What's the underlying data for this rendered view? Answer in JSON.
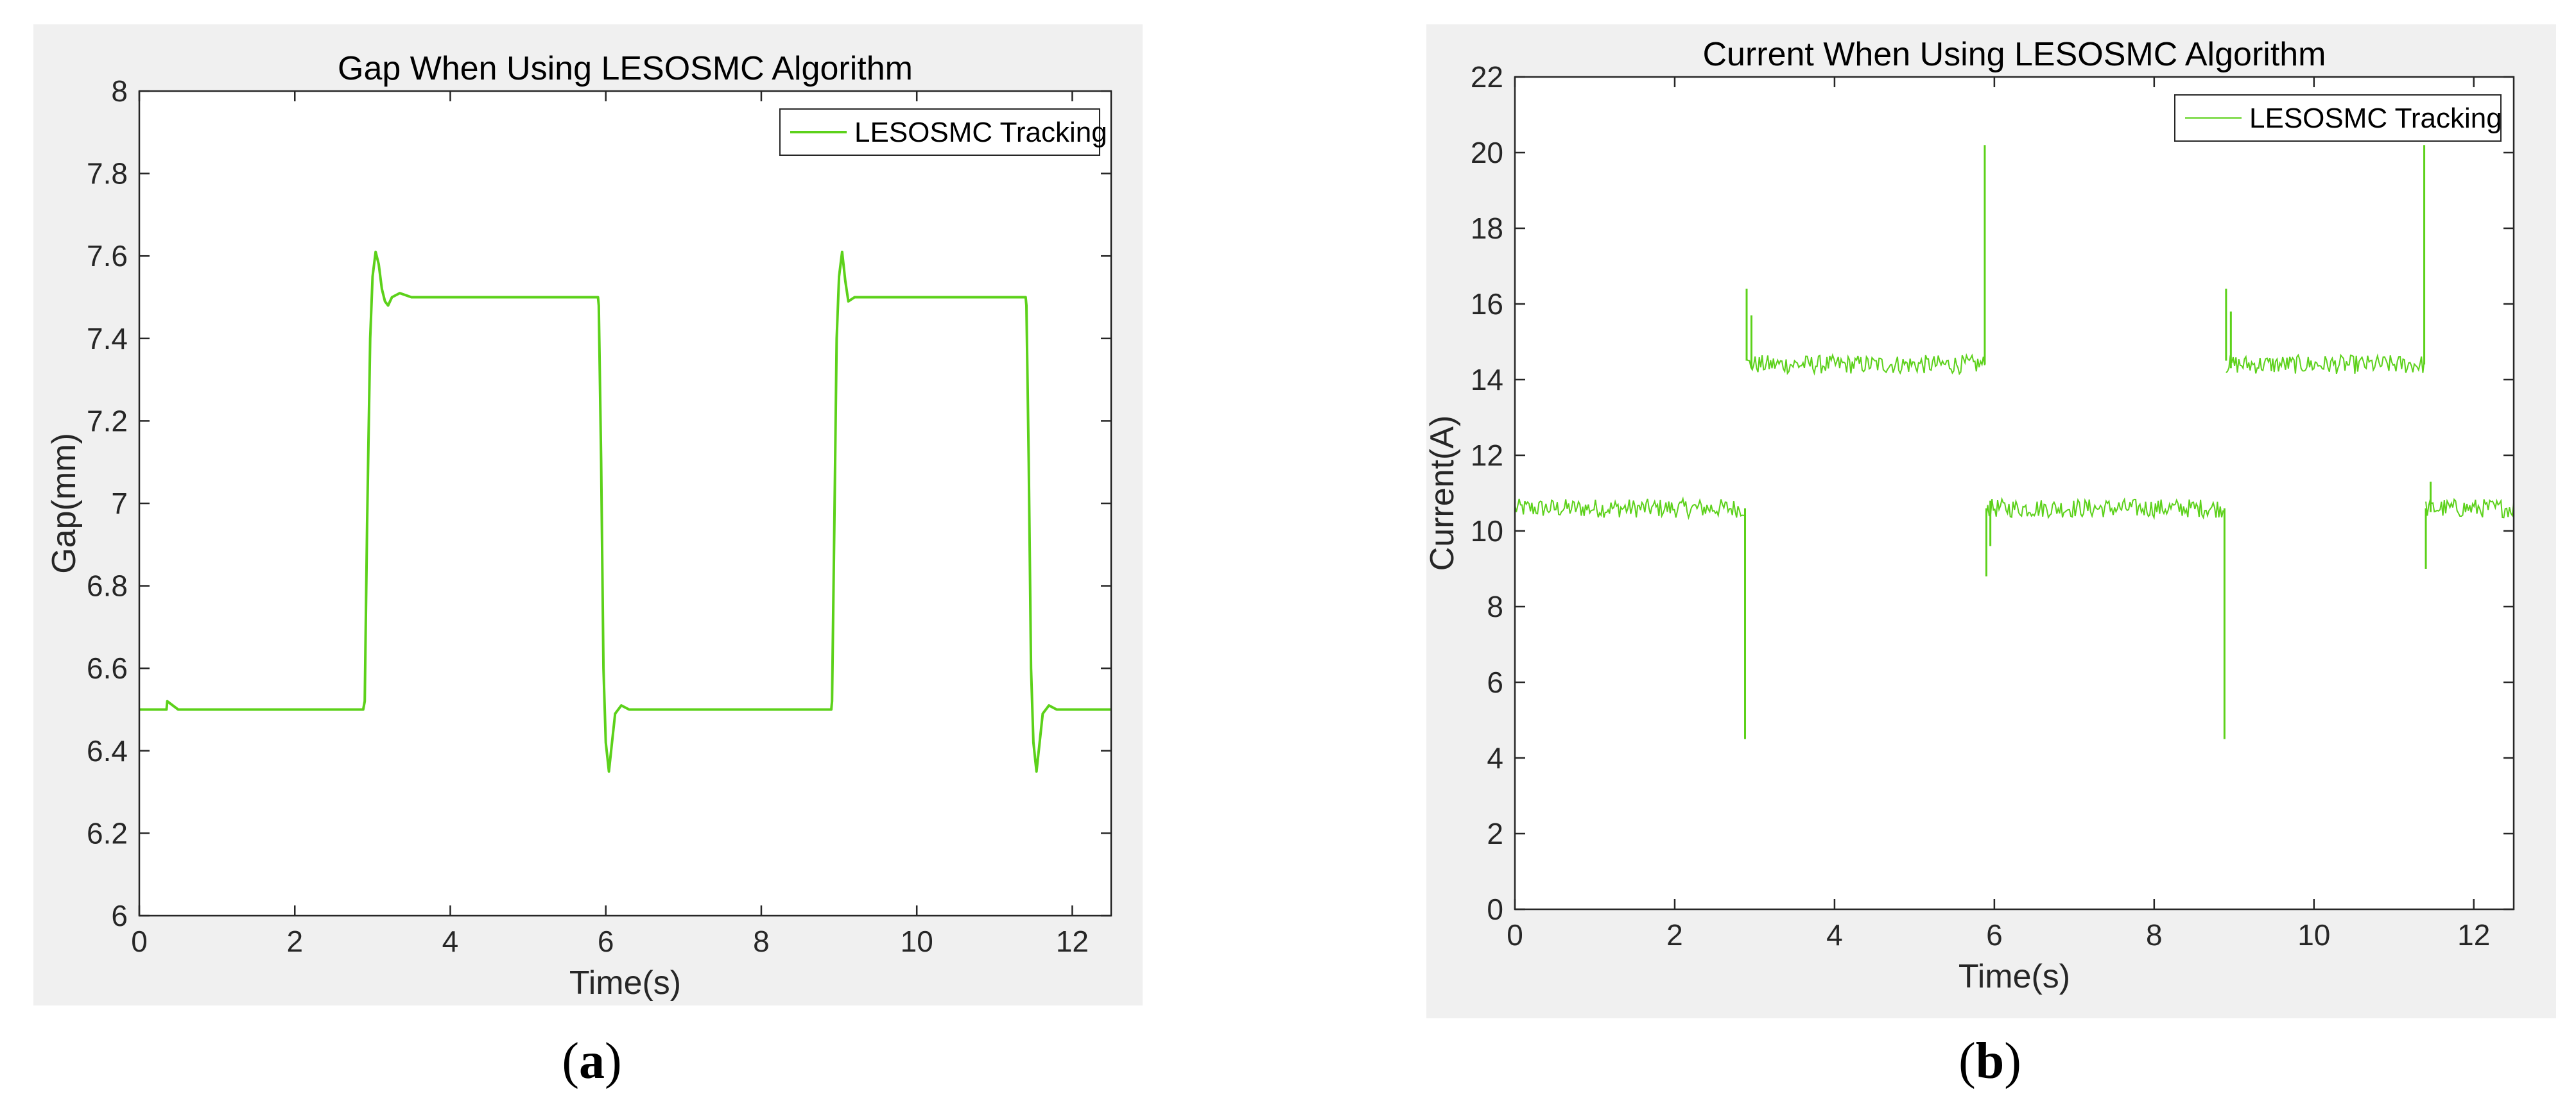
{
  "panels": [
    {
      "caption": "a",
      "chart_data": {
        "type": "line",
        "title": "Gap When Using LESOSMC Algorithm",
        "xlabel": "Time(s)",
        "ylabel": "Gap(mm)",
        "xlim": [
          0,
          12.5
        ],
        "ylim": [
          6,
          8
        ],
        "xticks": [
          0,
          2,
          4,
          6,
          8,
          10,
          12
        ],
        "yticks": [
          6,
          6.2,
          6.4,
          6.6,
          6.8,
          7,
          7.2,
          7.4,
          7.6,
          7.8,
          8
        ],
        "grid": false,
        "legend": "top-right",
        "series": [
          {
            "name": "LESOSMC Tracking",
            "color": "#5cd11a",
            "x": [
              0,
              0.35,
              0.36,
              0.5,
              2.88,
              2.9,
              2.93,
              2.97,
              3.0,
              3.04,
              3.08,
              3.12,
              3.16,
              3.2,
              3.25,
              3.35,
              3.5,
              5.9,
              5.91,
              5.94,
              5.97,
              6.0,
              6.04,
              6.08,
              6.12,
              6.2,
              6.3,
              8.9,
              8.91,
              8.94,
              8.97,
              9.0,
              9.04,
              9.08,
              9.12,
              9.2,
              9.3,
              11.4,
              11.41,
              11.44,
              11.47,
              11.5,
              11.54,
              11.58,
              11.62,
              11.7,
              11.8,
              12.5
            ],
            "y": [
              6.5,
              6.5,
              6.52,
              6.5,
              6.5,
              6.52,
              6.95,
              7.4,
              7.55,
              7.61,
              7.58,
              7.52,
              7.49,
              7.48,
              7.5,
              7.51,
              7.5,
              7.5,
              7.48,
              7.1,
              6.6,
              6.42,
              6.35,
              6.42,
              6.49,
              6.51,
              6.5,
              6.5,
              6.52,
              6.95,
              7.4,
              7.55,
              7.61,
              7.54,
              7.49,
              7.5,
              7.5,
              7.5,
              7.48,
              7.1,
              6.6,
              6.42,
              6.35,
              6.42,
              6.49,
              6.51,
              6.5,
              6.5
            ]
          }
        ]
      }
    },
    {
      "caption": "b",
      "chart_data": {
        "type": "line",
        "title": "Current When Using LESOSMC Algorithm",
        "xlabel": "Time(s)",
        "ylabel": "Current(A)",
        "xlim": [
          0,
          12.5
        ],
        "ylim": [
          0,
          22
        ],
        "xticks": [
          0,
          2,
          4,
          6,
          8,
          10,
          12
        ],
        "yticks": [
          0,
          2,
          4,
          6,
          8,
          10,
          12,
          14,
          16,
          18,
          20,
          22
        ],
        "grid": false,
        "legend": "top-right",
        "series": [
          {
            "name": "LESOSMC Tracking",
            "color": "#5cd11a",
            "noise": 0.25,
            "segments": [
              [
                0,
                2.88,
                10.6
              ],
              [
                2.9,
                5.88,
                14.4
              ],
              [
                5.9,
                8.88,
                10.6
              ],
              [
                8.9,
                11.38,
                14.4
              ],
              [
                11.4,
                12.5,
                10.6
              ]
            ],
            "spikes": [
              {
                "x": 2.88,
                "y": [
                  4.5,
                  10.6
                ]
              },
              {
                "x": 2.9,
                "y": [
                  16.4,
                  14.5
                ]
              },
              {
                "x": 2.96,
                "y": [
                  15.7,
                  14.3
                ]
              },
              {
                "x": 5.88,
                "y": [
                  20.2,
                  14.4
                ]
              },
              {
                "x": 5.9,
                "y": [
                  8.8,
                  10.6
                ]
              },
              {
                "x": 5.95,
                "y": [
                  9.6,
                  10.8
                ]
              },
              {
                "x": 8.88,
                "y": [
                  4.5,
                  10.6
                ]
              },
              {
                "x": 8.9,
                "y": [
                  16.4,
                  14.5
                ]
              },
              {
                "x": 8.96,
                "y": [
                  15.8,
                  14.3
                ]
              },
              {
                "x": 11.38,
                "y": [
                  20.2,
                  14.4
                ]
              },
              {
                "x": 11.4,
                "y": [
                  9.0,
                  10.6
                ]
              },
              {
                "x": 11.46,
                "y": [
                  11.3,
                  10.5
                ]
              }
            ]
          }
        ]
      }
    }
  ]
}
